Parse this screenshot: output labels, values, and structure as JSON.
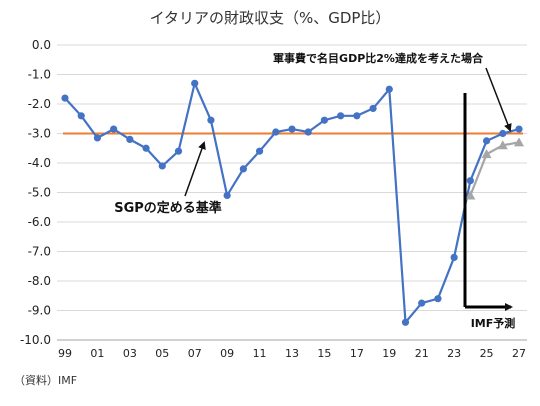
{
  "chart_data": {
    "type": "line",
    "title": "イタリアの財政収支（%、GDP比）",
    "xlabel": "",
    "ylabel": "",
    "ylim": [
      -10.0,
      0.0
    ],
    "yticks": [
      0.0,
      -1.0,
      -2.0,
      -3.0,
      -4.0,
      -5.0,
      -6.0,
      -7.0,
      -8.0,
      -9.0,
      -10.0
    ],
    "ytick_labels": [
      "0.0",
      "-1.0",
      "-2.0",
      "-3.0",
      "-4.0",
      "-5.0",
      "-6.0",
      "-7.0",
      "-8.0",
      "-9.0",
      "-10.0"
    ],
    "x_range": [
      1999,
      2027
    ],
    "x_tick_values": [
      1999,
      2001,
      2003,
      2005,
      2007,
      2009,
      2011,
      2013,
      2015,
      2017,
      2019,
      2021,
      2023,
      2025,
      2027
    ],
    "x_tick_labels": [
      "99",
      "01",
      "03",
      "05",
      "07",
      "09",
      "11",
      "13",
      "15",
      "17",
      "19",
      "21",
      "23",
      "25",
      "27"
    ],
    "grid": true,
    "series": [
      {
        "name": "",
        "color": "#4472c4",
        "marker": "circle",
        "x": [
          1999,
          2000,
          2001,
          2002,
          2003,
          2004,
          2005,
          2006,
          2007,
          2008,
          2009,
          2010,
          2011,
          2012,
          2013,
          2014,
          2015,
          2016,
          2017,
          2018,
          2019,
          2020,
          2021,
          2022,
          2023,
          2024,
          2025,
          2026,
          2027
        ],
        "values": [
          -1.8,
          -2.4,
          -3.15,
          -2.85,
          -3.2,
          -3.5,
          -4.1,
          -3.6,
          -1.3,
          -2.55,
          -5.1,
          -4.2,
          -3.6,
          -2.95,
          -2.85,
          -2.95,
          -2.55,
          -2.4,
          -2.4,
          -2.15,
          -1.5,
          -9.4,
          -8.75,
          -8.6,
          -7.2,
          -4.6,
          -3.25,
          -3.0,
          -2.85
        ]
      },
      {
        "name": "",
        "color": "#a6a6a6",
        "marker": "triangle",
        "x": [
          2024,
          2025,
          2026,
          2027
        ],
        "values": [
          -5.1,
          -3.7,
          -3.4,
          -3.3
        ]
      }
    ],
    "reference_line": {
      "value": -3.0,
      "color": "#ed7d31"
    },
    "annotations": {
      "sgp": "SGPの定める基準",
      "military": "軍事費で名目GDP比2%達成を考えた場合",
      "imf_forecast": "IMF予測"
    }
  },
  "source": "（資料）IMF"
}
